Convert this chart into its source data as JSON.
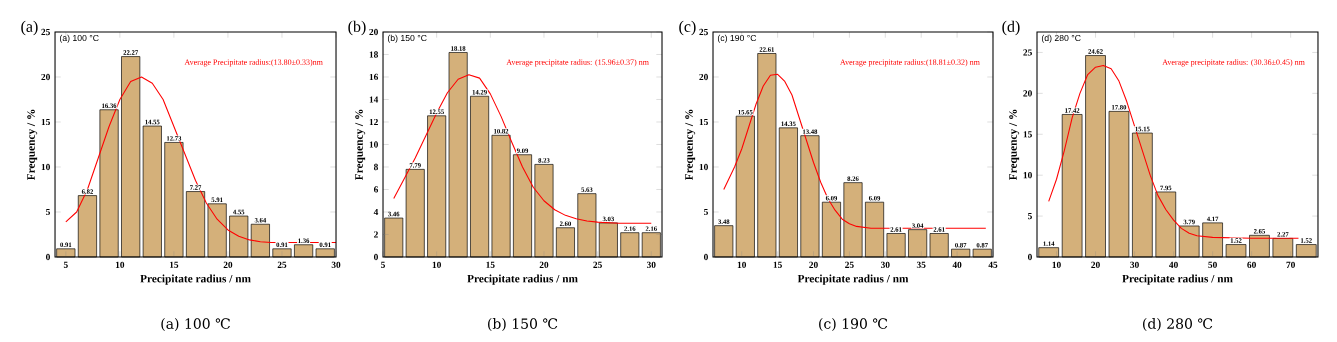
{
  "chart_data": [
    {
      "type": "bar",
      "title": "(a)",
      "xlabel": "Precipitate radius / nm",
      "ylabel": "Frequency / %",
      "xlim": [
        4,
        30
      ],
      "ylim": [
        0,
        25
      ],
      "xticks": [
        5,
        10,
        15,
        20,
        25,
        30
      ],
      "yticks": [
        0,
        5,
        10,
        15,
        20,
        25
      ],
      "annotations": [
        "(a) 100 °C",
        "Average Precipitate radius:(13.80±0.33)nm",
        "(a) 100 ℃"
      ],
      "series": [
        {
          "color": "#d4b07a",
          "x": [
            5,
            7,
            9,
            11,
            13,
            15,
            17,
            19,
            21,
            23,
            25,
            27,
            29
          ],
          "values": [
            0.91,
            6.82,
            16.36,
            22.27,
            14.55,
            12.73,
            7.27,
            5.91,
            4.55,
            3.64,
            0.91,
            1.36,
            0.91
          ],
          "value_labels": [
            "0.91",
            "6.82",
            "16.36",
            "22.27",
            "14.55",
            "12.73",
            "7.27",
            "5.91",
            "4.55",
            "3.64",
            "0.91",
            "1.36",
            "0.91"
          ]
        },
        {
          "type": "line",
          "color": "#ff0000",
          "x": [
            5,
            6,
            7,
            8,
            9,
            10,
            11,
            12,
            13,
            14,
            15,
            16,
            17,
            18,
            19,
            20,
            21,
            22,
            23,
            24,
            26,
            30
          ],
          "values": [
            3.9,
            5,
            7.5,
            11,
            14.5,
            17.5,
            19.5,
            20,
            19.3,
            17.5,
            14.5,
            11.5,
            8.5,
            6,
            4.2,
            3,
            2.3,
            1.9,
            1.7,
            1.6,
            1.6,
            1.6
          ]
        }
      ]
    },
    {
      "type": "bar",
      "title": "(b)",
      "xlabel": "Precipitate radius / nm",
      "ylabel": "Frequency / %",
      "xlim": [
        5,
        31
      ],
      "ylim": [
        0,
        20
      ],
      "xticks": [
        5,
        10,
        15,
        20,
        25,
        30
      ],
      "yticks": [
        0,
        2,
        4,
        6,
        8,
        10,
        12,
        14,
        16,
        18,
        20
      ],
      "annotations": [
        "(b) 150 °C",
        "Average precipitate radius: (15.96±0.37) nm",
        "(b) 150 ℃"
      ],
      "series": [
        {
          "color": "#d4b07a",
          "x": [
            6,
            8,
            10,
            12,
            14,
            16,
            18,
            20,
            22,
            24,
            26,
            28,
            30
          ],
          "values": [
            3.46,
            7.79,
            12.55,
            18.18,
            14.29,
            10.82,
            9.09,
            8.23,
            2.6,
            5.63,
            3.03,
            2.16,
            2.16
          ],
          "value_labels": [
            "3.46",
            "7.79",
            "12.55",
            "18.18",
            "14.29",
            "10.82",
            "9.09",
            "8.23",
            "2.60",
            "5.63",
            "3.03",
            "2.16",
            "2.16"
          ]
        },
        {
          "type": "line",
          "color": "#ff0000",
          "x": [
            6,
            7,
            8,
            9,
            10,
            11,
            12,
            13,
            14,
            15,
            16,
            17,
            18,
            19,
            20,
            21,
            22,
            23,
            24,
            25,
            27,
            30
          ],
          "values": [
            5.2,
            7,
            8.8,
            10.8,
            12.8,
            14.6,
            15.8,
            16.2,
            15.9,
            14.5,
            12.5,
            10.2,
            8,
            6.2,
            5,
            4.2,
            3.7,
            3.4,
            3.2,
            3.1,
            3,
            3
          ]
        }
      ]
    },
    {
      "type": "bar",
      "title": "(c)",
      "xlabel": "Precipitate radius / nm",
      "ylabel": "Frequency / %",
      "xlim": [
        6,
        45
      ],
      "ylim": [
        0,
        25
      ],
      "xticks": [
        10,
        15,
        20,
        25,
        30,
        35,
        40,
        45
      ],
      "yticks": [
        0,
        5,
        10,
        15,
        20,
        25
      ],
      "annotations": [
        "(c) 190 °C",
        "Average precipitate radius:(18.81±0.32) nm",
        "(c) 190 ℃"
      ],
      "series": [
        {
          "color": "#d4b07a",
          "x": [
            7.5,
            10.5,
            13.5,
            16.5,
            19.5,
            22.5,
            25.5,
            28.5,
            31.5,
            34.5,
            37.5,
            40.5,
            43.5
          ],
          "values": [
            3.48,
            15.65,
            22.61,
            14.35,
            13.48,
            6.09,
            8.26,
            6.09,
            2.61,
            3.04,
            2.61,
            0.87,
            0.87
          ],
          "value_labels": [
            "3.48",
            "15.65",
            "22.61",
            "14.35",
            "13.48",
            "6.09",
            "8.26",
            "6.09",
            "2.61",
            "3.04",
            "2.61",
            "0.87",
            "0.87"
          ]
        },
        {
          "type": "line",
          "color": "#ff0000",
          "x": [
            7.5,
            9,
            10,
            11,
            12,
            13,
            14,
            15,
            16,
            17,
            18,
            19,
            20,
            21,
            22,
            23,
            24,
            25,
            26,
            28,
            32,
            44
          ],
          "values": [
            7.5,
            10,
            12,
            14.5,
            17,
            19,
            20.2,
            20.3,
            19.5,
            18,
            15.5,
            13,
            10.5,
            8.3,
            6.5,
            5.2,
            4.2,
            3.7,
            3.4,
            3.2,
            3.2,
            3.2
          ]
        }
      ]
    },
    {
      "type": "bar",
      "title": "(d)",
      "xlabel": "Precipitate radius / nm",
      "ylabel": "Frequency / %",
      "xlim": [
        5,
        77
      ],
      "ylim": [
        0,
        27.5
      ],
      "xticks": [
        10,
        20,
        30,
        40,
        50,
        60,
        70
      ],
      "yticks": [
        0,
        5,
        10,
        15,
        20,
        25
      ],
      "annotations": [
        "(d) 280 °C",
        "Average precipitate radius: (30.36±0.45) nm",
        "(d) 280 ℃"
      ],
      "series": [
        {
          "color": "#d4b07a",
          "x": [
            8,
            14,
            20,
            26,
            32,
            38,
            44,
            50,
            56,
            62,
            68,
            74
          ],
          "values": [
            1.14,
            17.42,
            24.62,
            17.8,
            15.15,
            7.95,
            3.79,
            4.17,
            1.52,
            2.65,
            2.27,
            1.52
          ],
          "value_labels": [
            "1.14",
            "17.42",
            "24.62",
            "17.80",
            "15.15",
            "7.95",
            "3.79",
            "4.17",
            "1.52",
            "2.65",
            "2.27",
            "1.52"
          ]
        },
        {
          "type": "line",
          "color": "#ff0000",
          "x": [
            8,
            10,
            12,
            14,
            16,
            18,
            20,
            22,
            24,
            26,
            28,
            30,
            32,
            34,
            36,
            38,
            40,
            42,
            44,
            46,
            50,
            60,
            72
          ],
          "values": [
            6.8,
            9.5,
            13,
            17,
            20,
            22.3,
            23.2,
            23.4,
            23,
            21.5,
            19,
            16,
            13,
            10,
            7.5,
            5.8,
            4.5,
            3.5,
            2.9,
            2.6,
            2.4,
            2.3,
            2.3
          ]
        }
      ]
    }
  ]
}
